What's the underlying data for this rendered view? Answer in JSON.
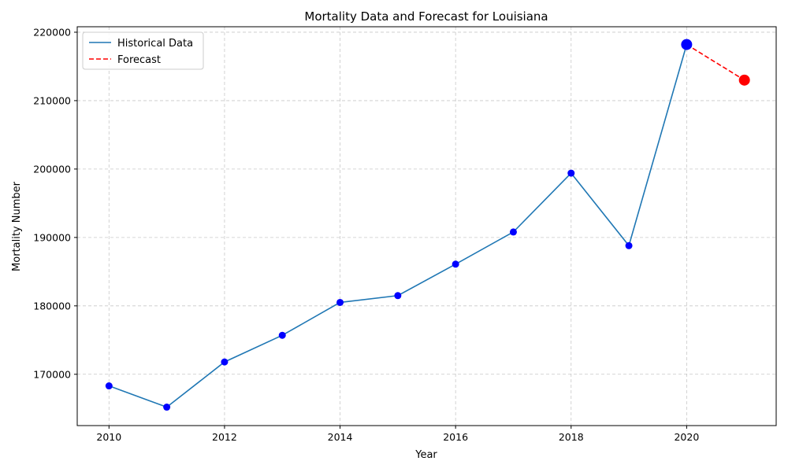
{
  "chart_data": {
    "type": "line",
    "title": "Mortality Data and Forecast for Louisiana",
    "xlabel": "Year",
    "ylabel": "Mortality Number",
    "xlim": [
      2009.45,
      2021.55
    ],
    "ylim": [
      162500,
      220800
    ],
    "x_ticks": [
      2010,
      2012,
      2014,
      2016,
      2018,
      2020
    ],
    "y_ticks": [
      170000,
      180000,
      190000,
      200000,
      210000,
      220000
    ],
    "grid": true,
    "legend_position": "top-left",
    "series": [
      {
        "name": "Historical Data",
        "style": "solid",
        "color": "#1f77b4",
        "marker_color": "#0000ff",
        "x": [
          2010,
          2011,
          2012,
          2013,
          2014,
          2015,
          2016,
          2017,
          2018,
          2019,
          2020
        ],
        "y": [
          168300,
          165200,
          171800,
          175700,
          180500,
          181500,
          186100,
          190800,
          199400,
          188800,
          218200
        ]
      },
      {
        "name": "Forecast",
        "style": "dashed",
        "color": "#ff0000",
        "marker_color": "#ff0000",
        "x": [
          2020,
          2021
        ],
        "y": [
          218200,
          213000
        ]
      }
    ],
    "highlight_points": [
      {
        "x": 2020,
        "y": 218200,
        "color": "#0000ff"
      },
      {
        "x": 2021,
        "y": 213000,
        "color": "#ff0000"
      }
    ]
  }
}
